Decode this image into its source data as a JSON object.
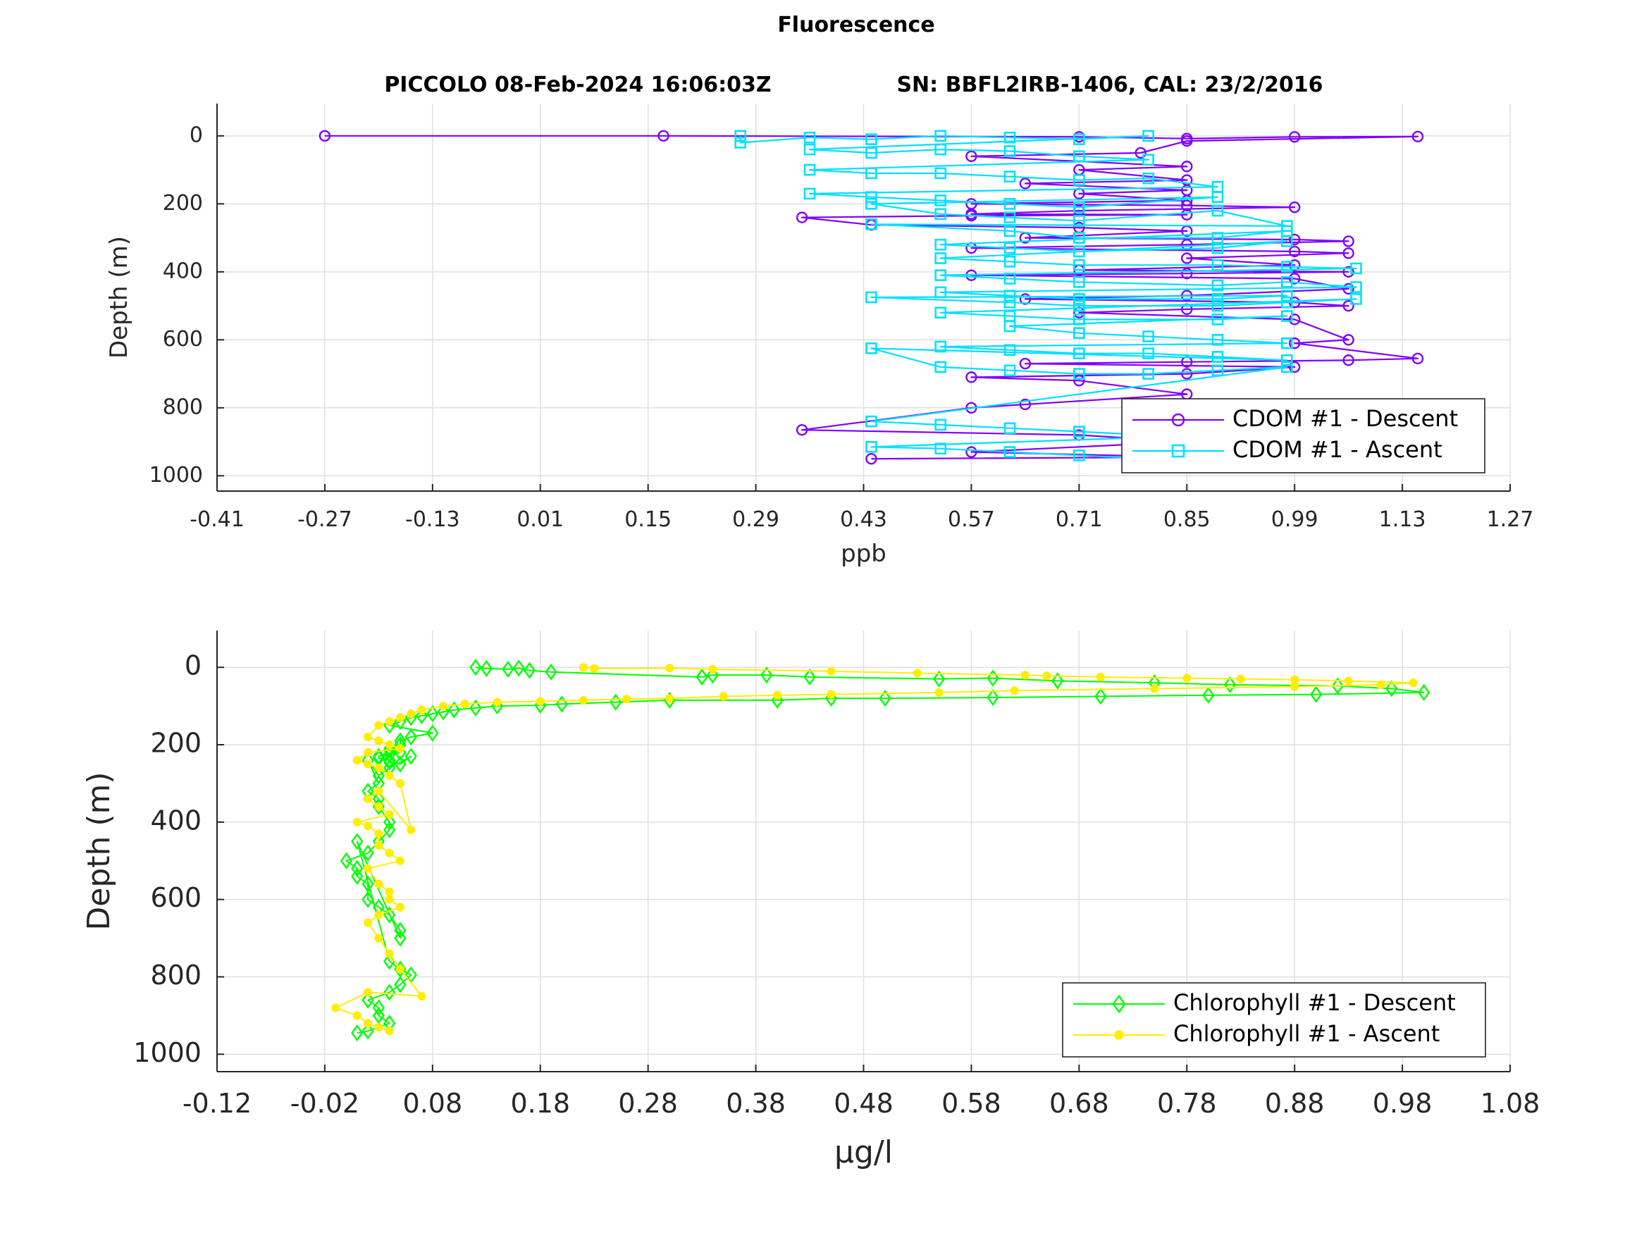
{
  "figure": {
    "suptitle": "Fluorescence",
    "subtitle_left": "PICCOLO 08-Feb-2024 16:06:03Z",
    "subtitle_right": "SN: BBFL2IRB-1406, CAL: 23/2/2016"
  },
  "chart_data": [
    {
      "type": "line",
      "title": "",
      "xlabel": "ppb",
      "ylabel": "Depth (m)",
      "xlim": [
        -0.41,
        1.27
      ],
      "ylim": [
        -95,
        1045
      ],
      "y_reversed": true,
      "grid": true,
      "legend_position": "bottom-right",
      "xticks": [
        -0.41,
        -0.27,
        -0.13,
        0.01,
        0.15,
        0.29,
        0.43,
        0.57,
        0.71,
        0.85,
        0.99,
        1.13,
        1.27
      ],
      "xtick_labels": [
        "-0.41",
        "-0.27",
        "-0.13",
        "0.01",
        "0.15",
        "0.29",
        "0.43",
        "0.57",
        "0.71",
        "0.85",
        "0.99",
        "1.13",
        "1.27"
      ],
      "yticks": [
        0,
        200,
        400,
        600,
        800,
        1000
      ],
      "ytick_labels": [
        "0",
        "200",
        "400",
        "600",
        "800",
        "1000"
      ],
      "series": [
        {
          "name": "CDOM #1 - Descent",
          "color": "#8000ff",
          "marker": "circle",
          "x": [
            -0.27,
            0.17,
            0.71,
            0.85,
            0.99,
            1.15,
            0.85,
            0.79,
            0.57,
            0.85,
            0.71,
            0.85,
            0.64,
            0.85,
            0.71,
            0.85,
            0.57,
            0.85,
            0.99,
            0.71,
            0.57,
            0.85,
            0.57,
            0.35,
            0.44,
            0.71,
            0.85,
            0.64,
            0.99,
            1.06,
            0.85,
            0.57,
            0.99,
            1.06,
            0.85,
            0.99,
            0.71,
            1.06,
            0.85,
            0.57,
            0.99,
            1.06,
            0.85,
            0.64,
            0.99,
            1.06,
            0.85,
            0.71,
            0.99,
            1.06,
            0.99,
            1.15,
            1.06,
            0.85,
            0.64,
            0.99,
            0.85,
            0.57,
            0.71,
            0.85,
            0.64,
            0.57,
            0.35,
            0.71,
            0.85,
            0.57,
            0.85,
            0.44
          ],
          "y": [
            0,
            0,
            3,
            8,
            3,
            2,
            15,
            50,
            60,
            90,
            100,
            130,
            140,
            160,
            170,
            190,
            200,
            205,
            210,
            220,
            230,
            232,
            235,
            240,
            262,
            270,
            280,
            300,
            305,
            310,
            320,
            330,
            340,
            345,
            360,
            380,
            395,
            400,
            405,
            410,
            420,
            450,
            470,
            480,
            490,
            500,
            510,
            520,
            540,
            600,
            610,
            655,
            660,
            665,
            670,
            680,
            700,
            710,
            720,
            760,
            790,
            800,
            865,
            880,
            900,
            930,
            945,
            950
          ]
        },
        {
          "name": "CDOM #1 - Ascent",
          "color": "#00e0ff",
          "marker": "square",
          "x": [
            0.27,
            0.27,
            0.36,
            0.44,
            0.53,
            0.62,
            0.71,
            0.8,
            0.36,
            0.44,
            0.53,
            0.62,
            0.71,
            0.8,
            0.36,
            0.44,
            0.53,
            0.62,
            0.71,
            0.8,
            0.89,
            0.36,
            0.44,
            0.53,
            0.62,
            0.71,
            0.89,
            0.44,
            0.53,
            0.62,
            0.71,
            0.89,
            0.98,
            0.44,
            0.62,
            0.71,
            0.89,
            0.98,
            0.53,
            0.62,
            0.71,
            0.89,
            0.98,
            0.53,
            0.62,
            0.71,
            0.89,
            0.98,
            1.07,
            0.53,
            0.62,
            0.71,
            0.89,
            0.98,
            1.07,
            0.53,
            0.62,
            0.71,
            0.89,
            0.98,
            0.44,
            0.62,
            0.71,
            0.89,
            0.98,
            1.07,
            0.53,
            0.62,
            0.71,
            0.89,
            0.98,
            0.62,
            0.71,
            0.8,
            0.89,
            0.98,
            0.53,
            0.62,
            0.71,
            0.8,
            0.89,
            0.98,
            0.44,
            0.53,
            0.62,
            0.71,
            0.8,
            0.89,
            0.98,
            0.44,
            0.53,
            0.62,
            0.71,
            0.8,
            0.89,
            0.44,
            0.53,
            0.62,
            0.71,
            0.8,
            0.89
          ],
          "y": [
            0,
            20,
            5,
            10,
            0,
            5,
            10,
            0,
            40,
            50,
            40,
            45,
            60,
            70,
            100,
            110,
            110,
            120,
            130,
            125,
            150,
            170,
            180,
            190,
            200,
            210,
            180,
            200,
            230,
            240,
            250,
            220,
            265,
            260,
            280,
            300,
            300,
            280,
            320,
            330,
            340,
            330,
            310,
            360,
            370,
            380,
            380,
            385,
            390,
            410,
            420,
            430,
            440,
            430,
            445,
            460,
            470,
            480,
            480,
            470,
            475,
            490,
            500,
            500,
            490,
            480,
            520,
            530,
            540,
            540,
            530,
            560,
            580,
            590,
            600,
            610,
            620,
            630,
            640,
            640,
            650,
            660,
            625,
            680,
            690,
            700,
            700,
            690,
            680,
            840,
            850,
            860,
            870,
            880,
            880,
            915,
            920,
            930,
            940,
            950,
            940
          ]
        }
      ]
    },
    {
      "type": "line",
      "title": "",
      "xlabel": "μg/l",
      "ylabel": "Depth (m)",
      "xlim": [
        -0.12,
        1.08
      ],
      "ylim": [
        -95,
        1045
      ],
      "y_reversed": true,
      "grid": true,
      "legend_position": "bottom-right",
      "xticks": [
        -0.12,
        -0.02,
        0.08,
        0.18,
        0.28,
        0.38,
        0.48,
        0.58,
        0.68,
        0.78,
        0.88,
        0.98,
        1.08
      ],
      "xtick_labels": [
        "-0.12",
        "-0.02",
        "0.08",
        "0.18",
        "0.28",
        "0.38",
        "0.48",
        "0.58",
        "0.68",
        "0.78",
        "0.88",
        "0.98",
        "1.08"
      ],
      "yticks": [
        0,
        200,
        400,
        600,
        800,
        1000
      ],
      "ytick_labels": [
        "0",
        "200",
        "400",
        "600",
        "800",
        "1000"
      ],
      "series": [
        {
          "name": "Chlorophyll #1 - Descent",
          "color": "#00ff00",
          "marker": "diamond",
          "x": [
            0.12,
            0.13,
            0.15,
            0.16,
            0.17,
            0.19,
            0.33,
            0.34,
            0.39,
            0.43,
            0.55,
            0.6,
            0.66,
            0.75,
            0.82,
            0.92,
            0.97,
            1.0,
            0.9,
            0.8,
            0.7,
            0.6,
            0.5,
            0.45,
            0.4,
            0.3,
            0.25,
            0.2,
            0.18,
            0.14,
            0.12,
            0.1,
            0.09,
            0.08,
            0.07,
            0.06,
            0.05,
            0.04,
            0.08,
            0.06,
            0.05,
            0.05,
            0.04,
            0.04,
            0.05,
            0.04,
            0.03,
            0.03,
            0.04,
            0.04,
            0.05,
            0.06,
            0.04,
            0.03,
            0.02,
            0.03,
            0.02,
            0.03,
            0.03,
            0.04,
            0.04,
            0.03,
            0.02,
            0.0,
            0.01,
            0.01,
            0.02,
            0.02,
            0.03,
            0.04,
            0.05,
            0.05,
            0.01,
            0.04,
            0.05,
            0.06,
            0.05,
            0.04,
            0.02,
            0.03,
            0.03,
            0.04,
            0.02,
            0.01
          ],
          "y": [
            0,
            3,
            5,
            2,
            8,
            12,
            25,
            20,
            20,
            25,
            30,
            28,
            35,
            40,
            45,
            48,
            55,
            65,
            70,
            72,
            75,
            78,
            80,
            80,
            85,
            85,
            90,
            95,
            98,
            100,
            105,
            110,
            115,
            120,
            125,
            130,
            140,
            150,
            170,
            180,
            190,
            200,
            210,
            215,
            220,
            225,
            230,
            235,
            240,
            245,
            250,
            230,
            260,
            280,
            240,
            300,
            320,
            340,
            360,
            400,
            420,
            450,
            480,
            500,
            520,
            540,
            560,
            600,
            620,
            640,
            680,
            700,
            450,
            760,
            780,
            795,
            820,
            840,
            860,
            880,
            900,
            920,
            940,
            945
          ]
        },
        {
          "name": "Chlorophyll #1 - Ascent",
          "color": "#ffee00",
          "marker": "dot",
          "x": [
            0.22,
            0.23,
            0.3,
            0.34,
            0.45,
            0.53,
            0.63,
            0.65,
            0.7,
            0.78,
            0.83,
            0.88,
            0.93,
            0.99,
            0.96,
            0.88,
            0.75,
            0.62,
            0.55,
            0.45,
            0.4,
            0.35,
            0.3,
            0.26,
            0.22,
            0.18,
            0.14,
            0.11,
            0.09,
            0.07,
            0.06,
            0.05,
            0.04,
            0.03,
            0.02,
            0.03,
            0.04,
            0.05,
            0.02,
            0.01,
            0.02,
            0.03,
            0.04,
            0.05,
            0.06,
            0.03,
            0.02,
            0.03,
            0.04,
            0.01,
            0.02,
            0.03,
            0.03,
            0.04,
            0.05,
            0.02,
            0.03,
            0.04,
            0.04,
            0.05,
            0.03,
            0.02,
            0.03,
            0.04,
            0.05,
            0.07,
            0.02,
            -0.01,
            0.01,
            0.02,
            0.03,
            0.04
          ],
          "y": [
            0,
            3,
            2,
            5,
            10,
            15,
            20,
            22,
            25,
            28,
            30,
            32,
            35,
            40,
            45,
            50,
            55,
            60,
            65,
            70,
            72,
            75,
            80,
            82,
            85,
            88,
            90,
            95,
            100,
            110,
            120,
            130,
            140,
            150,
            180,
            190,
            200,
            210,
            220,
            240,
            250,
            260,
            280,
            300,
            420,
            320,
            340,
            360,
            380,
            400,
            410,
            430,
            460,
            480,
            500,
            520,
            560,
            580,
            600,
            620,
            640,
            660,
            700,
            740,
            780,
            850,
            840,
            880,
            900,
            920,
            930,
            940
          ]
        }
      ]
    }
  ]
}
